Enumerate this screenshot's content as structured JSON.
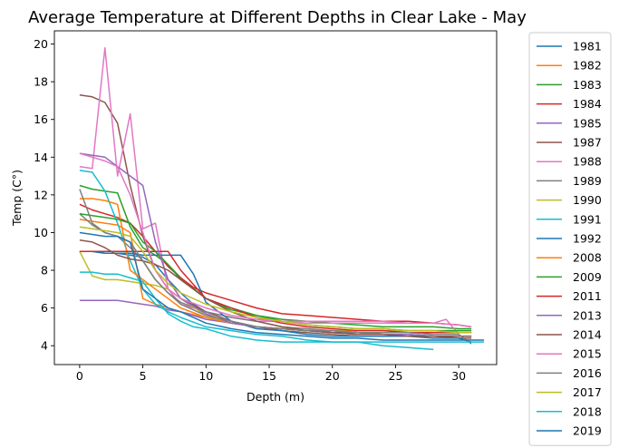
{
  "chart_data": {
    "type": "line",
    "title": "Average Temperature at Different Depths in Clear Lake - May",
    "xlabel": "Depth (m)",
    "ylabel": "Temp (C°)",
    "xlim": [
      -2,
      33
    ],
    "ylim": [
      3,
      20.7
    ],
    "xticks": [
      0,
      5,
      10,
      15,
      20,
      25,
      30
    ],
    "yticks": [
      4,
      6,
      8,
      10,
      12,
      14,
      16,
      18,
      20
    ],
    "grid": false,
    "legend_position": "outside-right",
    "palette": [
      "#1f77b4",
      "#ff7f0e",
      "#2ca02c",
      "#d62728",
      "#9467bd",
      "#8c564b",
      "#e377c2",
      "#7f7f7f",
      "#bcbd22",
      "#17becf"
    ],
    "series": [
      {
        "name": "1981",
        "x": [
          0,
          1,
          2,
          3,
          4,
          5,
          6,
          7,
          8,
          9,
          10,
          12,
          14,
          16,
          18,
          20,
          22,
          24,
          26,
          28,
          30,
          31
        ],
        "y": [
          9.0,
          9.0,
          8.9,
          8.9,
          8.8,
          8.7,
          8.3,
          7.5,
          6.8,
          6.2,
          5.8,
          5.3,
          5.0,
          4.9,
          4.8,
          4.7,
          4.7,
          4.6,
          4.6,
          4.5,
          4.5,
          4.5
        ]
      },
      {
        "name": "1982",
        "x": [
          0,
          1,
          2,
          3,
          4,
          5,
          6,
          7,
          8,
          10,
          12,
          14,
          16,
          18,
          20,
          22,
          24,
          26,
          28,
          30,
          31
        ],
        "y": [
          10.7,
          10.6,
          10.5,
          10.4,
          10.0,
          6.5,
          6.2,
          6.0,
          5.8,
          5.5,
          5.2,
          5.0,
          4.9,
          4.8,
          4.8,
          4.7,
          4.7,
          4.7,
          4.7,
          4.7,
          4.7
        ]
      },
      {
        "name": "1983",
        "x": [
          0,
          1,
          2,
          3,
          4,
          5,
          6,
          7,
          8,
          10,
          12,
          14,
          16,
          18,
          20,
          22,
          24,
          26,
          28,
          30,
          31
        ],
        "y": [
          12.5,
          12.3,
          12.2,
          12.1,
          10.3,
          9.2,
          8.8,
          8.3,
          7.6,
          6.5,
          5.9,
          5.6,
          5.4,
          5.3,
          5.2,
          5.1,
          5.0,
          5.0,
          5.0,
          4.9,
          4.9
        ]
      },
      {
        "name": "1984",
        "x": [
          0,
          1,
          2,
          3,
          4,
          5,
          6,
          7,
          8,
          9,
          10,
          11,
          12,
          14,
          16,
          18,
          20,
          22,
          24,
          26,
          28,
          30,
          31
        ],
        "y": [
          11.5,
          11.2,
          11.0,
          10.8,
          10.5,
          9.8,
          9.0,
          8.2,
          7.6,
          7.1,
          6.8,
          6.6,
          6.4,
          6.0,
          5.7,
          5.6,
          5.5,
          5.4,
          5.3,
          5.3,
          5.2,
          5.1,
          5.0
        ]
      },
      {
        "name": "1985",
        "x": [
          0,
          1,
          2,
          3,
          4,
          5,
          6,
          7,
          8,
          9,
          10,
          12,
          14,
          16,
          18,
          20,
          22,
          24,
          26,
          28,
          30
        ],
        "y": [
          6.4,
          6.4,
          6.4,
          6.4,
          6.3,
          6.2,
          6.1,
          5.9,
          5.8,
          5.6,
          5.4,
          5.2,
          5.0,
          4.9,
          4.8,
          4.8,
          4.7,
          4.7,
          4.7,
          4.7,
          4.7
        ]
      },
      {
        "name": "1987",
        "x": [
          0,
          1,
          2,
          3,
          4,
          5,
          6,
          7,
          8,
          10,
          12,
          14,
          16,
          18,
          20,
          22,
          24,
          26,
          28,
          30,
          31
        ],
        "y": [
          17.3,
          17.2,
          16.9,
          15.8,
          12.5,
          9.8,
          8.0,
          7.0,
          6.5,
          5.8,
          5.3,
          5.0,
          4.8,
          4.7,
          4.6,
          4.5,
          4.5,
          4.5,
          4.5,
          4.4,
          4.4
        ]
      },
      {
        "name": "1988",
        "x": [
          0,
          1,
          2,
          3,
          4,
          5,
          6,
          7,
          8,
          10,
          12,
          14,
          16,
          18,
          20,
          22,
          24,
          26,
          28,
          29,
          30
        ],
        "y": [
          13.5,
          13.4,
          19.8,
          13.0,
          16.3,
          10.2,
          10.5,
          7.0,
          6.2,
          5.8,
          5.5,
          5.3,
          5.3,
          5.3,
          5.3,
          5.3,
          5.3,
          5.2,
          5.2,
          5.4,
          4.6
        ]
      },
      {
        "name": "1989",
        "x": [
          0,
          1,
          2,
          3,
          4,
          5,
          6,
          7,
          8,
          10,
          12,
          14,
          16,
          18,
          20,
          22,
          24,
          26,
          28,
          30,
          31
        ],
        "y": [
          11.0,
          10.4,
          10.0,
          9.8,
          9.2,
          8.5,
          7.5,
          6.8,
          6.3,
          5.8,
          5.5,
          5.3,
          5.0,
          4.9,
          4.8,
          4.7,
          4.6,
          4.6,
          4.5,
          4.5,
          4.5
        ]
      },
      {
        "name": "1990",
        "x": [
          0,
          1,
          2,
          3,
          4,
          5,
          6,
          7,
          8,
          10,
          12,
          14,
          16,
          18,
          20,
          22,
          24,
          26,
          28,
          30,
          31
        ],
        "y": [
          9.0,
          7.7,
          7.5,
          7.5,
          7.4,
          7.3,
          7.2,
          7.0,
          6.5,
          5.6,
          5.2,
          5.0,
          4.9,
          4.8,
          4.8,
          4.8,
          4.8,
          4.8,
          4.8,
          4.8,
          4.8
        ]
      },
      {
        "name": "1991",
        "x": [
          0,
          1,
          2,
          3,
          4,
          5,
          6,
          7,
          8,
          10,
          12,
          14,
          16,
          18,
          20,
          22,
          24,
          26,
          28
        ],
        "y": [
          13.3,
          13.2,
          12.2,
          10.5,
          8.5,
          7.0,
          6.2,
          5.8,
          5.5,
          5.0,
          4.8,
          4.6,
          4.5,
          4.3,
          4.2,
          4.2,
          4.0,
          3.9,
          3.8
        ]
      },
      {
        "name": "1992",
        "x": [
          0,
          1,
          2,
          3,
          4,
          5,
          6,
          7,
          8,
          9,
          10,
          12,
          14,
          16,
          18,
          20,
          22,
          24,
          26,
          28,
          30,
          31
        ],
        "y": [
          9.0,
          9.0,
          8.9,
          8.9,
          8.9,
          8.8,
          8.8,
          8.8,
          8.8,
          7.8,
          6.3,
          5.3,
          4.9,
          4.8,
          4.6,
          4.5,
          4.5,
          4.5,
          4.5,
          4.4,
          4.4,
          4.2
        ]
      },
      {
        "name": "2008",
        "x": [
          0,
          1,
          2,
          3,
          4,
          5,
          6,
          7,
          8,
          10,
          12,
          14,
          16,
          18,
          20,
          22,
          24,
          26,
          28,
          30,
          31
        ],
        "y": [
          11.8,
          11.8,
          11.7,
          11.5,
          8.0,
          7.5,
          7.0,
          6.5,
          6.0,
          5.5,
          5.2,
          5.0,
          4.9,
          4.8,
          4.8,
          4.7,
          4.7,
          4.7,
          4.7,
          4.7,
          4.7
        ]
      },
      {
        "name": "2009",
        "x": [
          0,
          1,
          2,
          3,
          4,
          5,
          6,
          7,
          8,
          10,
          12,
          14,
          16,
          18,
          20,
          22,
          24,
          26,
          28,
          30,
          31
        ],
        "y": [
          11.0,
          10.9,
          10.8,
          10.7,
          10.5,
          9.5,
          9.0,
          8.3,
          7.5,
          6.5,
          6.0,
          5.6,
          5.3,
          5.1,
          5.0,
          4.9,
          4.9,
          4.8,
          4.8,
          4.8,
          4.8
        ]
      },
      {
        "name": "2011",
        "x": [
          0,
          1,
          2,
          3,
          4,
          5,
          6,
          7,
          8,
          10,
          12,
          14,
          16,
          18,
          20,
          22,
          24,
          26,
          28,
          30,
          31
        ],
        "y": [
          9.0,
          9.0,
          9.0,
          9.0,
          9.0,
          9.0,
          9.0,
          9.0,
          8.0,
          6.5,
          6.0,
          5.5,
          5.2,
          5.0,
          4.9,
          4.8,
          4.8,
          4.7,
          4.7,
          4.7,
          4.7
        ]
      },
      {
        "name": "2013",
        "x": [
          0,
          1,
          2,
          3,
          4,
          5,
          6,
          7,
          8,
          10,
          12,
          14,
          16,
          18,
          20,
          22,
          24,
          26,
          28,
          30,
          31
        ],
        "y": [
          14.2,
          14.1,
          14.0,
          13.5,
          13.0,
          12.5,
          9.5,
          7.5,
          6.5,
          5.7,
          5.2,
          5.0,
          4.9,
          4.8,
          4.7,
          4.6,
          4.6,
          4.6,
          4.5,
          4.5,
          4.5
        ]
      },
      {
        "name": "2014",
        "x": [
          0,
          1,
          2,
          3,
          4,
          5,
          6,
          7,
          8,
          10,
          12,
          14,
          16,
          18,
          20,
          22,
          24,
          26,
          28,
          30,
          31
        ],
        "y": [
          9.6,
          9.5,
          9.2,
          8.8,
          8.6,
          8.5,
          8.3,
          8.0,
          7.5,
          6.5,
          5.8,
          5.3,
          5.0,
          4.8,
          4.7,
          4.6,
          4.6,
          4.5,
          4.5,
          4.5,
          4.5
        ]
      },
      {
        "name": "2015",
        "x": [
          0,
          1,
          2,
          3,
          4,
          5,
          6,
          7,
          8,
          10,
          12,
          14,
          16,
          18,
          20,
          22,
          24,
          26,
          28,
          30,
          31
        ],
        "y": [
          14.2,
          14.0,
          13.8,
          13.5,
          12.0,
          10.0,
          8.0,
          7.0,
          6.5,
          6.0,
          5.6,
          5.4,
          5.3,
          5.2,
          5.2,
          5.2,
          5.2,
          5.2,
          5.2,
          5.1,
          5.0
        ]
      },
      {
        "name": "2016",
        "x": [
          0,
          1,
          2,
          3,
          4,
          5,
          6,
          7,
          8,
          10,
          12,
          14,
          16,
          18,
          20,
          22,
          24,
          26,
          28,
          30,
          31
        ],
        "y": [
          12.3,
          10.5,
          10.0,
          9.8,
          9.5,
          8.5,
          7.5,
          6.8,
          6.2,
          5.6,
          5.3,
          5.0,
          4.9,
          4.8,
          4.8,
          4.7,
          4.7,
          4.7,
          4.6,
          4.6,
          4.1
        ]
      },
      {
        "name": "2017",
        "x": [
          0,
          1,
          2,
          3,
          4,
          5,
          6,
          7,
          8,
          10,
          12,
          14,
          16,
          18,
          20,
          22,
          24,
          26,
          28,
          30,
          31
        ],
        "y": [
          10.3,
          10.2,
          10.1,
          10.0,
          9.8,
          9.0,
          8.0,
          7.3,
          6.8,
          6.2,
          5.8,
          5.5,
          5.3,
          5.1,
          5.0,
          4.9,
          4.9,
          4.8,
          4.8,
          4.7,
          4.7
        ]
      },
      {
        "name": "2018",
        "x": [
          0,
          1,
          2,
          3,
          4,
          5,
          6,
          7,
          8,
          9,
          10,
          11,
          12,
          14,
          16,
          18,
          20,
          22,
          24,
          26,
          28,
          30,
          32
        ],
        "y": [
          7.9,
          7.9,
          7.8,
          7.8,
          7.6,
          7.4,
          6.5,
          5.7,
          5.3,
          5.0,
          4.9,
          4.7,
          4.5,
          4.3,
          4.2,
          4.2,
          4.2,
          4.2,
          4.2,
          4.2,
          4.2,
          4.2,
          4.2
        ]
      },
      {
        "name": "2019",
        "x": [
          0,
          1,
          2,
          3,
          4,
          5,
          6,
          7,
          8,
          10,
          12,
          14,
          16,
          18,
          20,
          22,
          24,
          26,
          28,
          30,
          32
        ],
        "y": [
          10.0,
          9.9,
          9.8,
          9.8,
          9.5,
          7.0,
          6.5,
          6.0,
          5.8,
          5.2,
          4.9,
          4.7,
          4.6,
          4.5,
          4.4,
          4.4,
          4.3,
          4.3,
          4.3,
          4.3,
          4.3
        ]
      }
    ]
  }
}
